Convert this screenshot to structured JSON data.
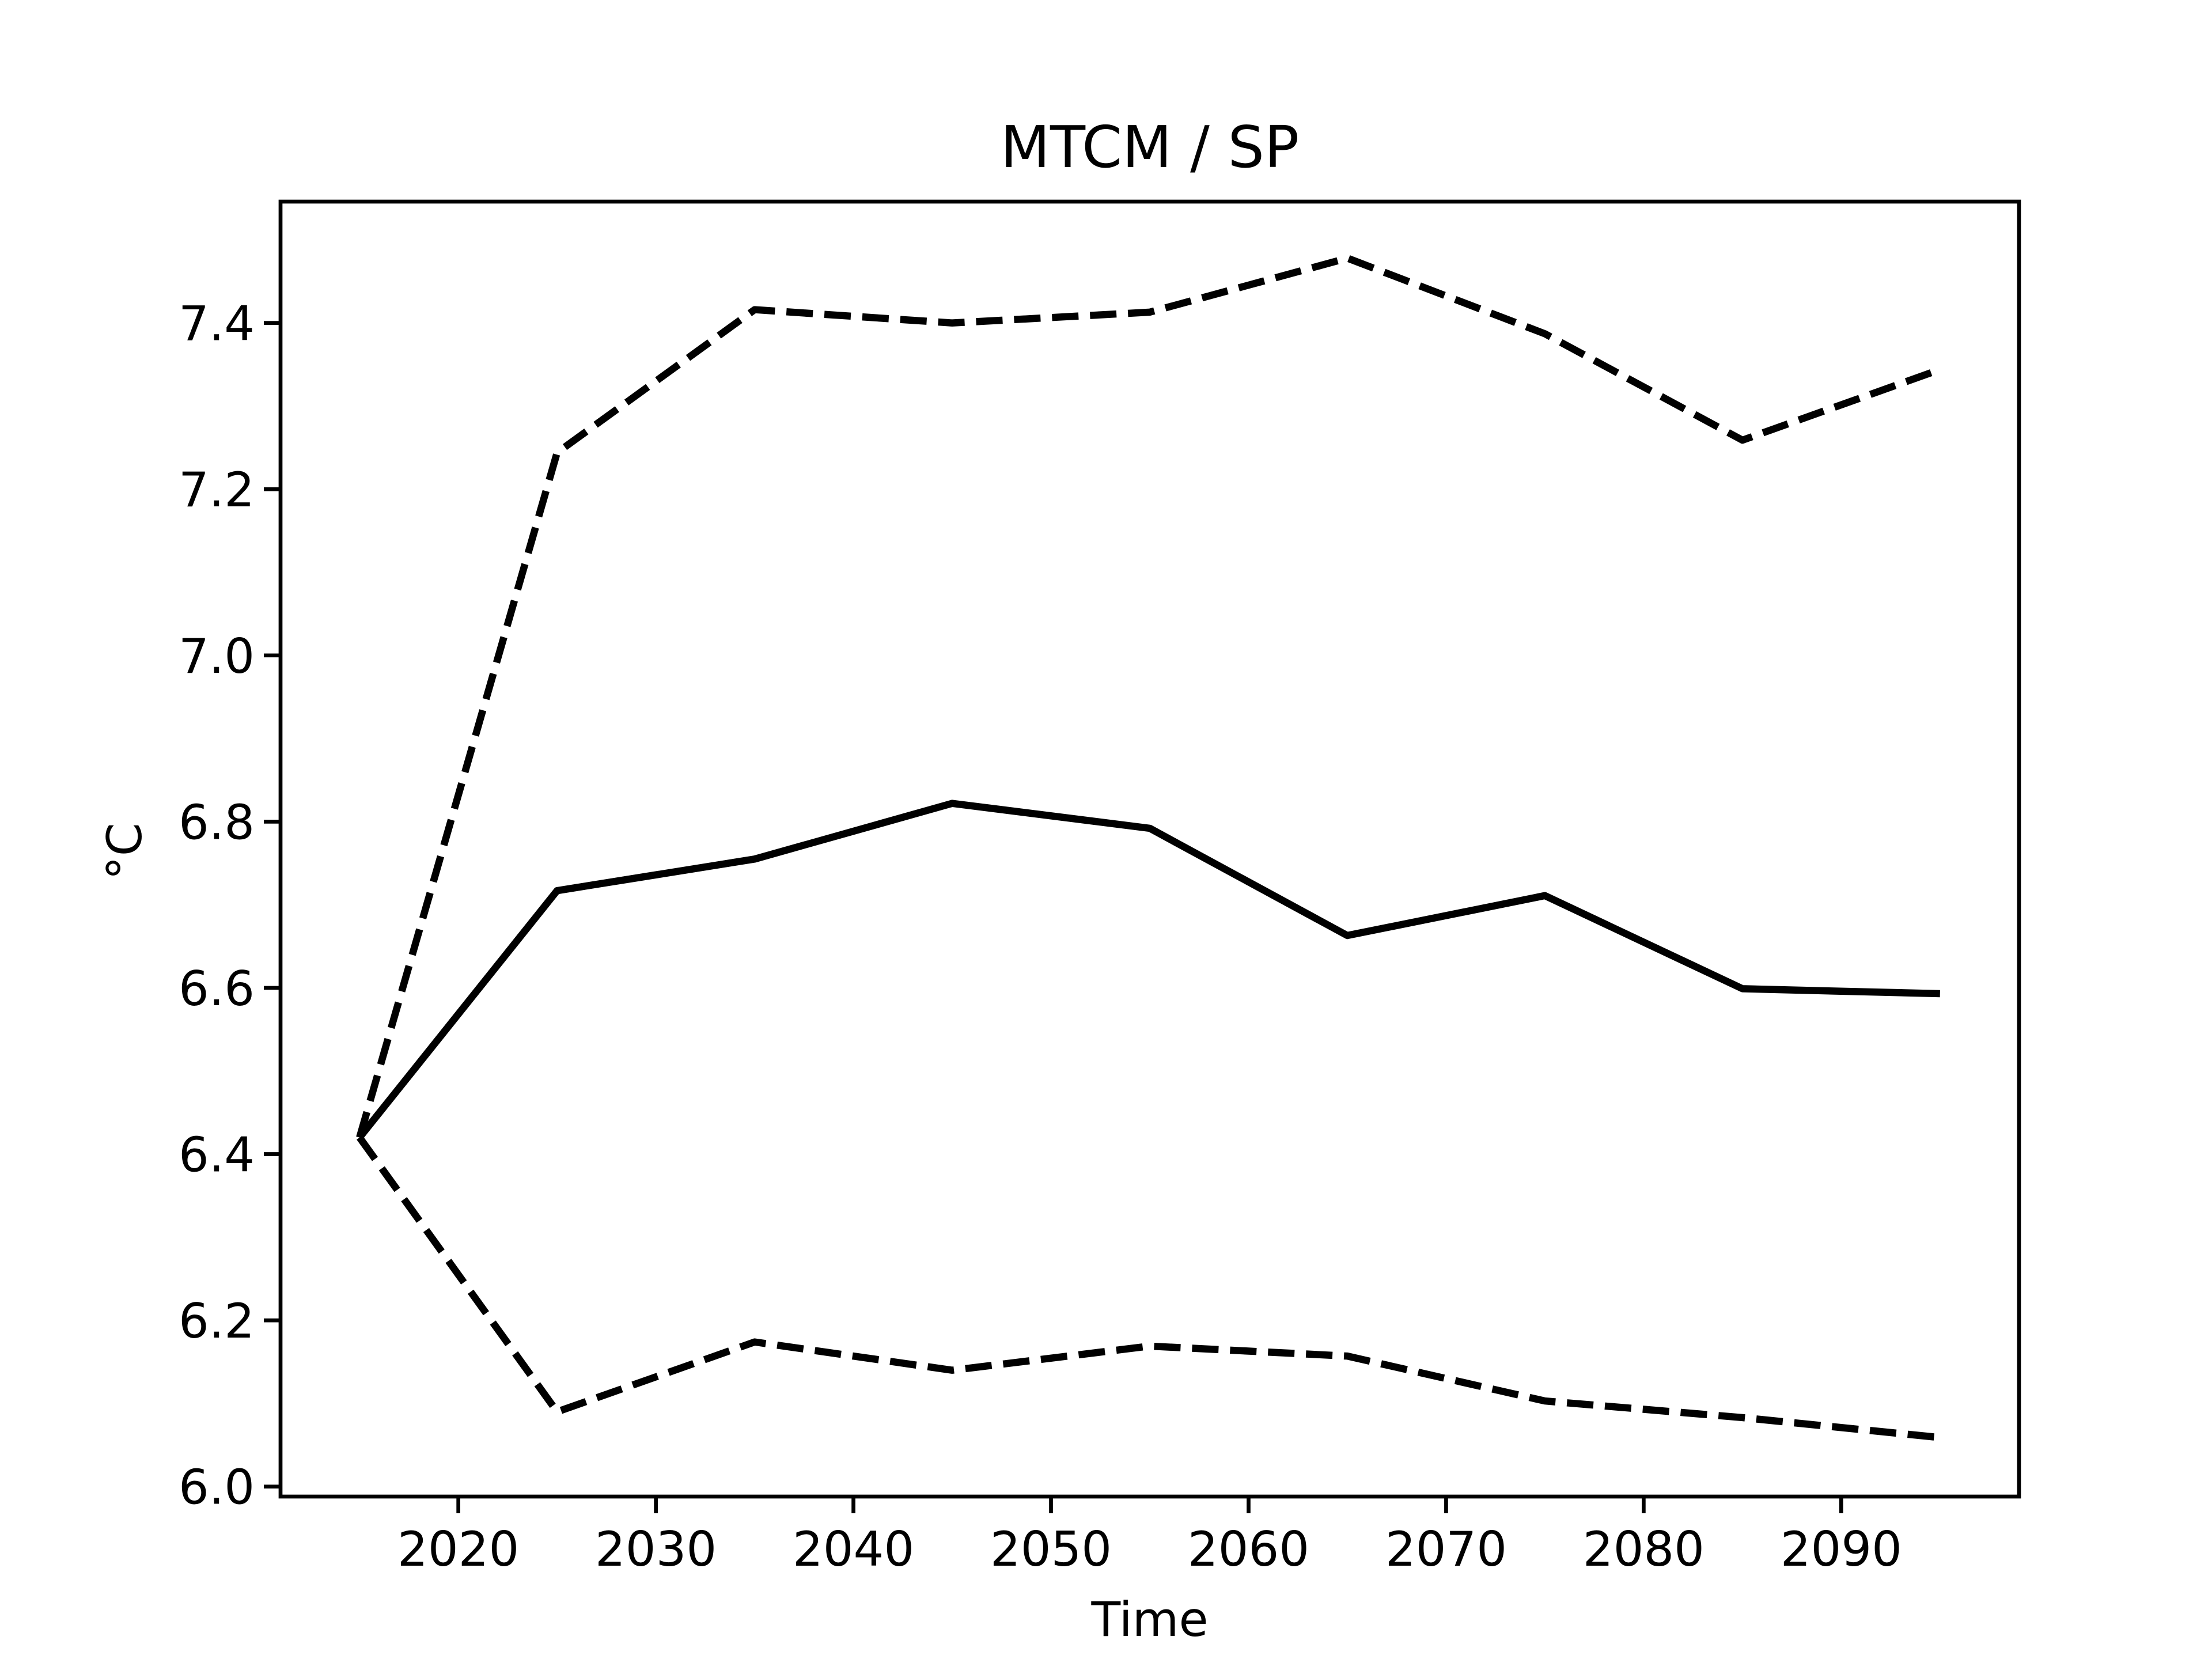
{
  "chart_data": {
    "type": "line",
    "title": "MTCM / SP",
    "xlabel": "Time",
    "ylabel": "°C",
    "x": [
      2015,
      2025,
      2035,
      2045,
      2055,
      2065,
      2075,
      2085,
      2095
    ],
    "series": [
      {
        "color": "#000000",
        "dashed": false,
        "values": [
          6.42,
          6.717,
          6.755,
          6.822,
          6.792,
          6.663,
          6.711,
          6.599,
          6.593
        ]
      },
      {
        "color": "#000000",
        "dashed": true,
        "values": [
          6.42,
          7.244,
          7.416,
          7.4,
          7.413,
          7.478,
          7.387,
          7.259,
          7.344
        ]
      },
      {
        "color": "#000000",
        "dashed": true,
        "values": [
          6.42,
          6.09,
          6.174,
          6.14,
          6.169,
          6.157,
          6.103,
          6.083,
          6.059
        ]
      }
    ],
    "xlim": [
      2011,
      2099
    ],
    "xticks": [
      2020,
      2030,
      2040,
      2050,
      2060,
      2070,
      2080,
      2090
    ],
    "ylim": [
      5.988,
      7.546
    ],
    "yticks": [
      {
        "value": 6.0,
        "label": "6.0"
      },
      6.2,
      6.4,
      6.6,
      6.8,
      {
        "value": 7.0,
        "label": "7.0"
      },
      7.2,
      7.4
    ],
    "grid": false
  }
}
